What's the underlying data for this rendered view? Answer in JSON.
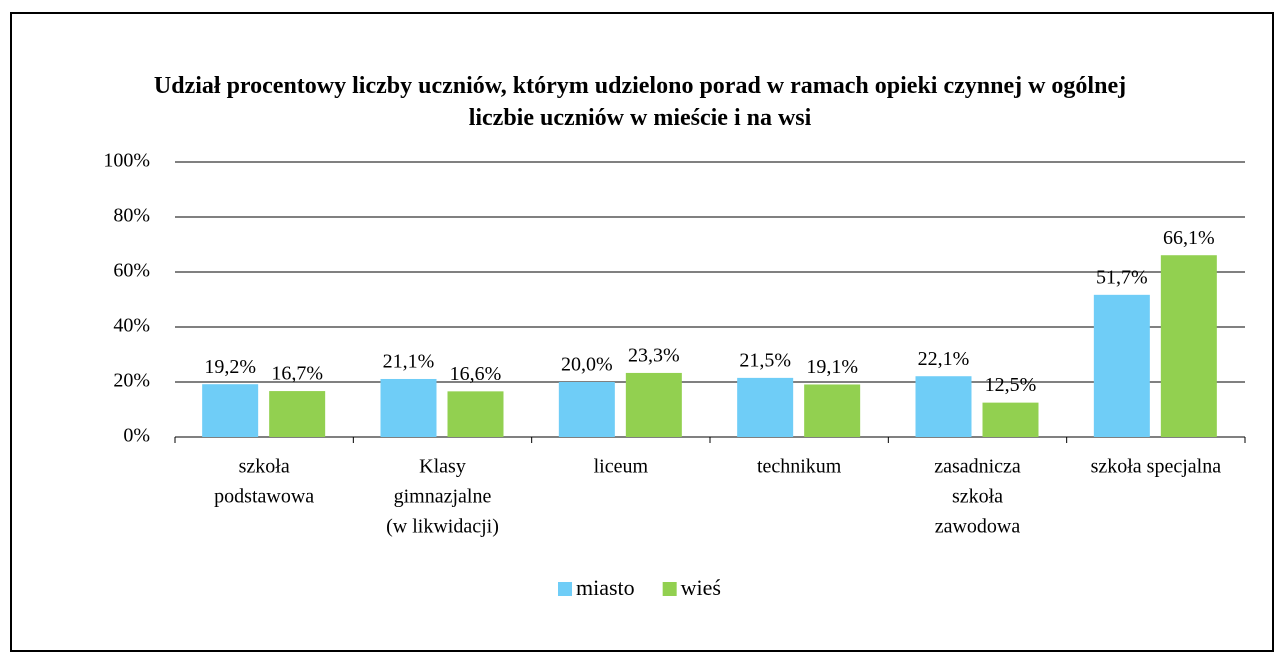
{
  "chart_data": {
    "type": "bar",
    "title": "Udział procentowy liczby uczniów, którym udzielono porad w ramach opieki czynnej w ogólnej liczbie uczniów w mieście i na wsi",
    "categories": [
      [
        "szkoła",
        "podstawowa"
      ],
      [
        "Klasy",
        "gimnazjalne",
        "(w likwidacji)"
      ],
      [
        "liceum"
      ],
      [
        "technikum"
      ],
      [
        "zasadnicza",
        "szkoła",
        "zawodowa"
      ],
      [
        "szkoła specjalna"
      ]
    ],
    "series": [
      {
        "name": "miasto",
        "color": "#6fcdf7",
        "values": [
          19.2,
          21.1,
          20.0,
          21.5,
          22.1,
          51.7
        ],
        "value_labels": [
          "19,2%",
          "21,1%",
          "20,0%",
          "21,5%",
          "22,1%",
          "51,7%"
        ]
      },
      {
        "name": "wieś",
        "color": "#92d050",
        "values": [
          16.7,
          16.6,
          23.3,
          19.1,
          12.5,
          66.1
        ],
        "value_labels": [
          "16,7%",
          "16,6%",
          "23,3%",
          "19,1%",
          "12,5%",
          "66,1%"
        ]
      }
    ],
    "ylim": [
      0,
      100
    ],
    "yticks": [
      {
        "value": 0,
        "label": "0%"
      },
      {
        "value": 20,
        "label": "20%"
      },
      {
        "value": 40,
        "label": "40%"
      },
      {
        "value": 60,
        "label": "60%"
      },
      {
        "value": 80,
        "label": "80%"
      },
      {
        "value": 100,
        "label": "100%"
      }
    ],
    "grid": true,
    "legend": "bottom"
  }
}
